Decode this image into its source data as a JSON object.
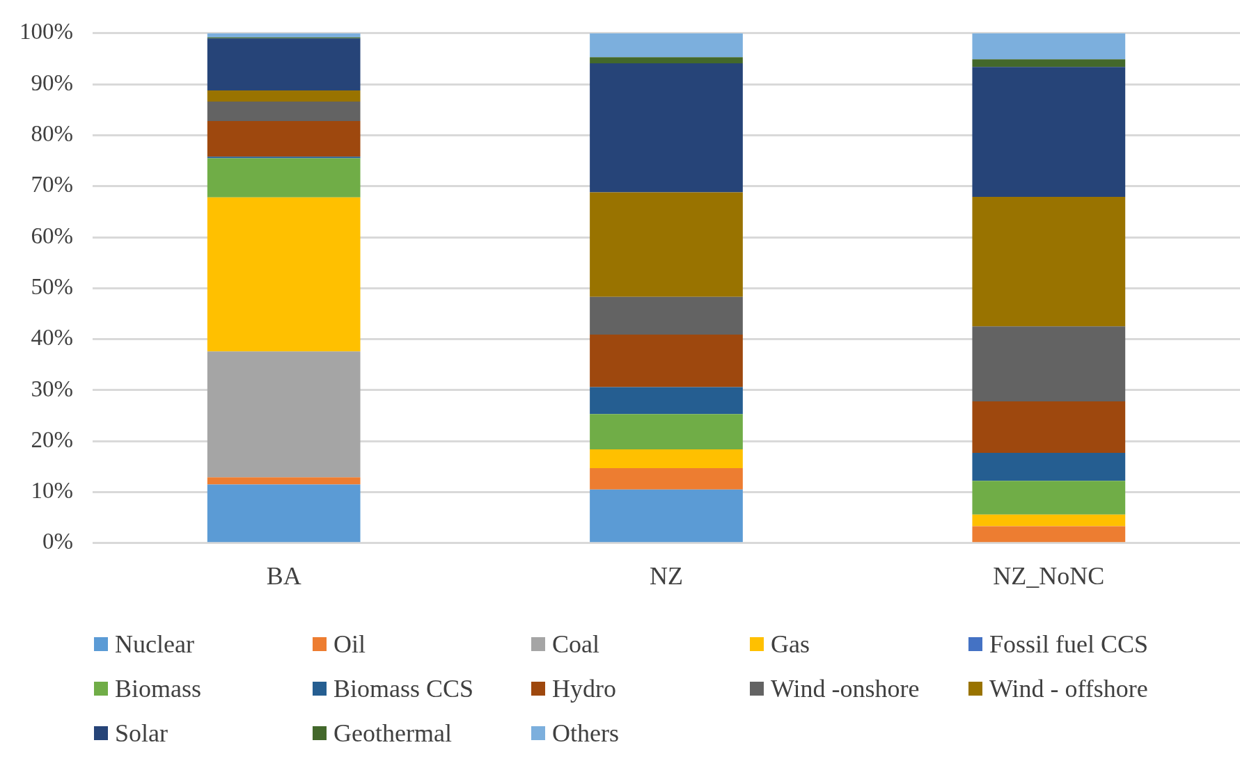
{
  "chart_data": {
    "type": "bar",
    "stacked": true,
    "categories": [
      "BA",
      "NZ",
      "NZ_NoNC"
    ],
    "series": [
      {
        "name": "Nuclear",
        "color": "#5b9bd5",
        "values": [
          11.5,
          10.5,
          0
        ]
      },
      {
        "name": "Oil",
        "color": "#ed7d31",
        "values": [
          1.4,
          4.2,
          3.3
        ]
      },
      {
        "name": "Coal",
        "color": "#a5a5a5",
        "values": [
          24.7,
          0,
          0
        ]
      },
      {
        "name": "Gas",
        "color": "#ffc000",
        "values": [
          30.2,
          3.7,
          2.3
        ]
      },
      {
        "name": "Fossil fuel CCS",
        "color": "#4472c4",
        "values": [
          0,
          0,
          0
        ]
      },
      {
        "name": "Biomass",
        "color": "#70ad47",
        "values": [
          7.7,
          6.9,
          6.6
        ]
      },
      {
        "name": "Biomass CCS",
        "color": "#255e91",
        "values": [
          0.3,
          5.3,
          5.5
        ]
      },
      {
        "name": "Hydro",
        "color": "#9e480e",
        "values": [
          7.0,
          10.3,
          10.1
        ]
      },
      {
        "name": "Wind -onshore",
        "color": "#636363",
        "values": [
          3.8,
          7.4,
          14.7
        ]
      },
      {
        "name": "Wind - offshore",
        "color": "#997300",
        "values": [
          2.2,
          20.5,
          25.4
        ]
      },
      {
        "name": "Solar",
        "color": "#264478",
        "values": [
          10.2,
          25.3,
          25.5
        ]
      },
      {
        "name": "Geothermal",
        "color": "#43682b",
        "values": [
          0.2,
          1.2,
          1.5
        ]
      },
      {
        "name": "Others",
        "color": "#7cafdd",
        "values": [
          0.8,
          4.7,
          5.1
        ]
      }
    ],
    "ylim": [
      0,
      100
    ],
    "yticks": [
      {
        "value": 0,
        "label": "0%"
      },
      {
        "value": 10,
        "label": "10%"
      },
      {
        "value": 20,
        "label": "20%"
      },
      {
        "value": 30,
        "label": "30%"
      },
      {
        "value": 40,
        "label": "40%"
      },
      {
        "value": 50,
        "label": "50%"
      },
      {
        "value": 60,
        "label": "60%"
      },
      {
        "value": 70,
        "label": "70%"
      },
      {
        "value": 80,
        "label": "80%"
      },
      {
        "value": 90,
        "label": "90%"
      },
      {
        "value": 100,
        "label": "100%"
      }
    ],
    "grid": "y",
    "legend": "bottom"
  }
}
